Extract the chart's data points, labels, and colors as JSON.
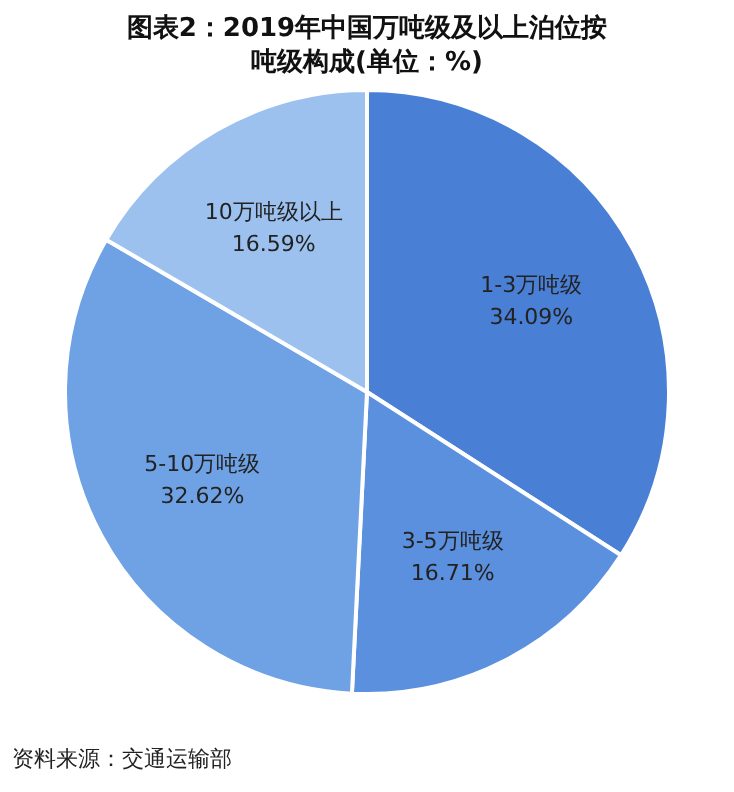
{
  "chart_data": {
    "type": "pie",
    "title": "图表2：2019年中国万吨级及以上泊位按吨级构成(单位：%)",
    "categories": [
      "1-3万吨级",
      "3-5万吨级",
      "5-10万吨级",
      "10万吨级以上"
    ],
    "values": [
      34.09,
      16.71,
      32.62,
      16.59
    ],
    "value_labels": [
      "34.09%",
      "16.71%",
      "32.62%",
      "16.59%"
    ],
    "colors": [
      "#4a7fd6",
      "#5a90dd",
      "#6fa2e4",
      "#9dc1ef"
    ],
    "legend": false,
    "annotations": [
      "资料来源：交通运输部"
    ]
  }
}
